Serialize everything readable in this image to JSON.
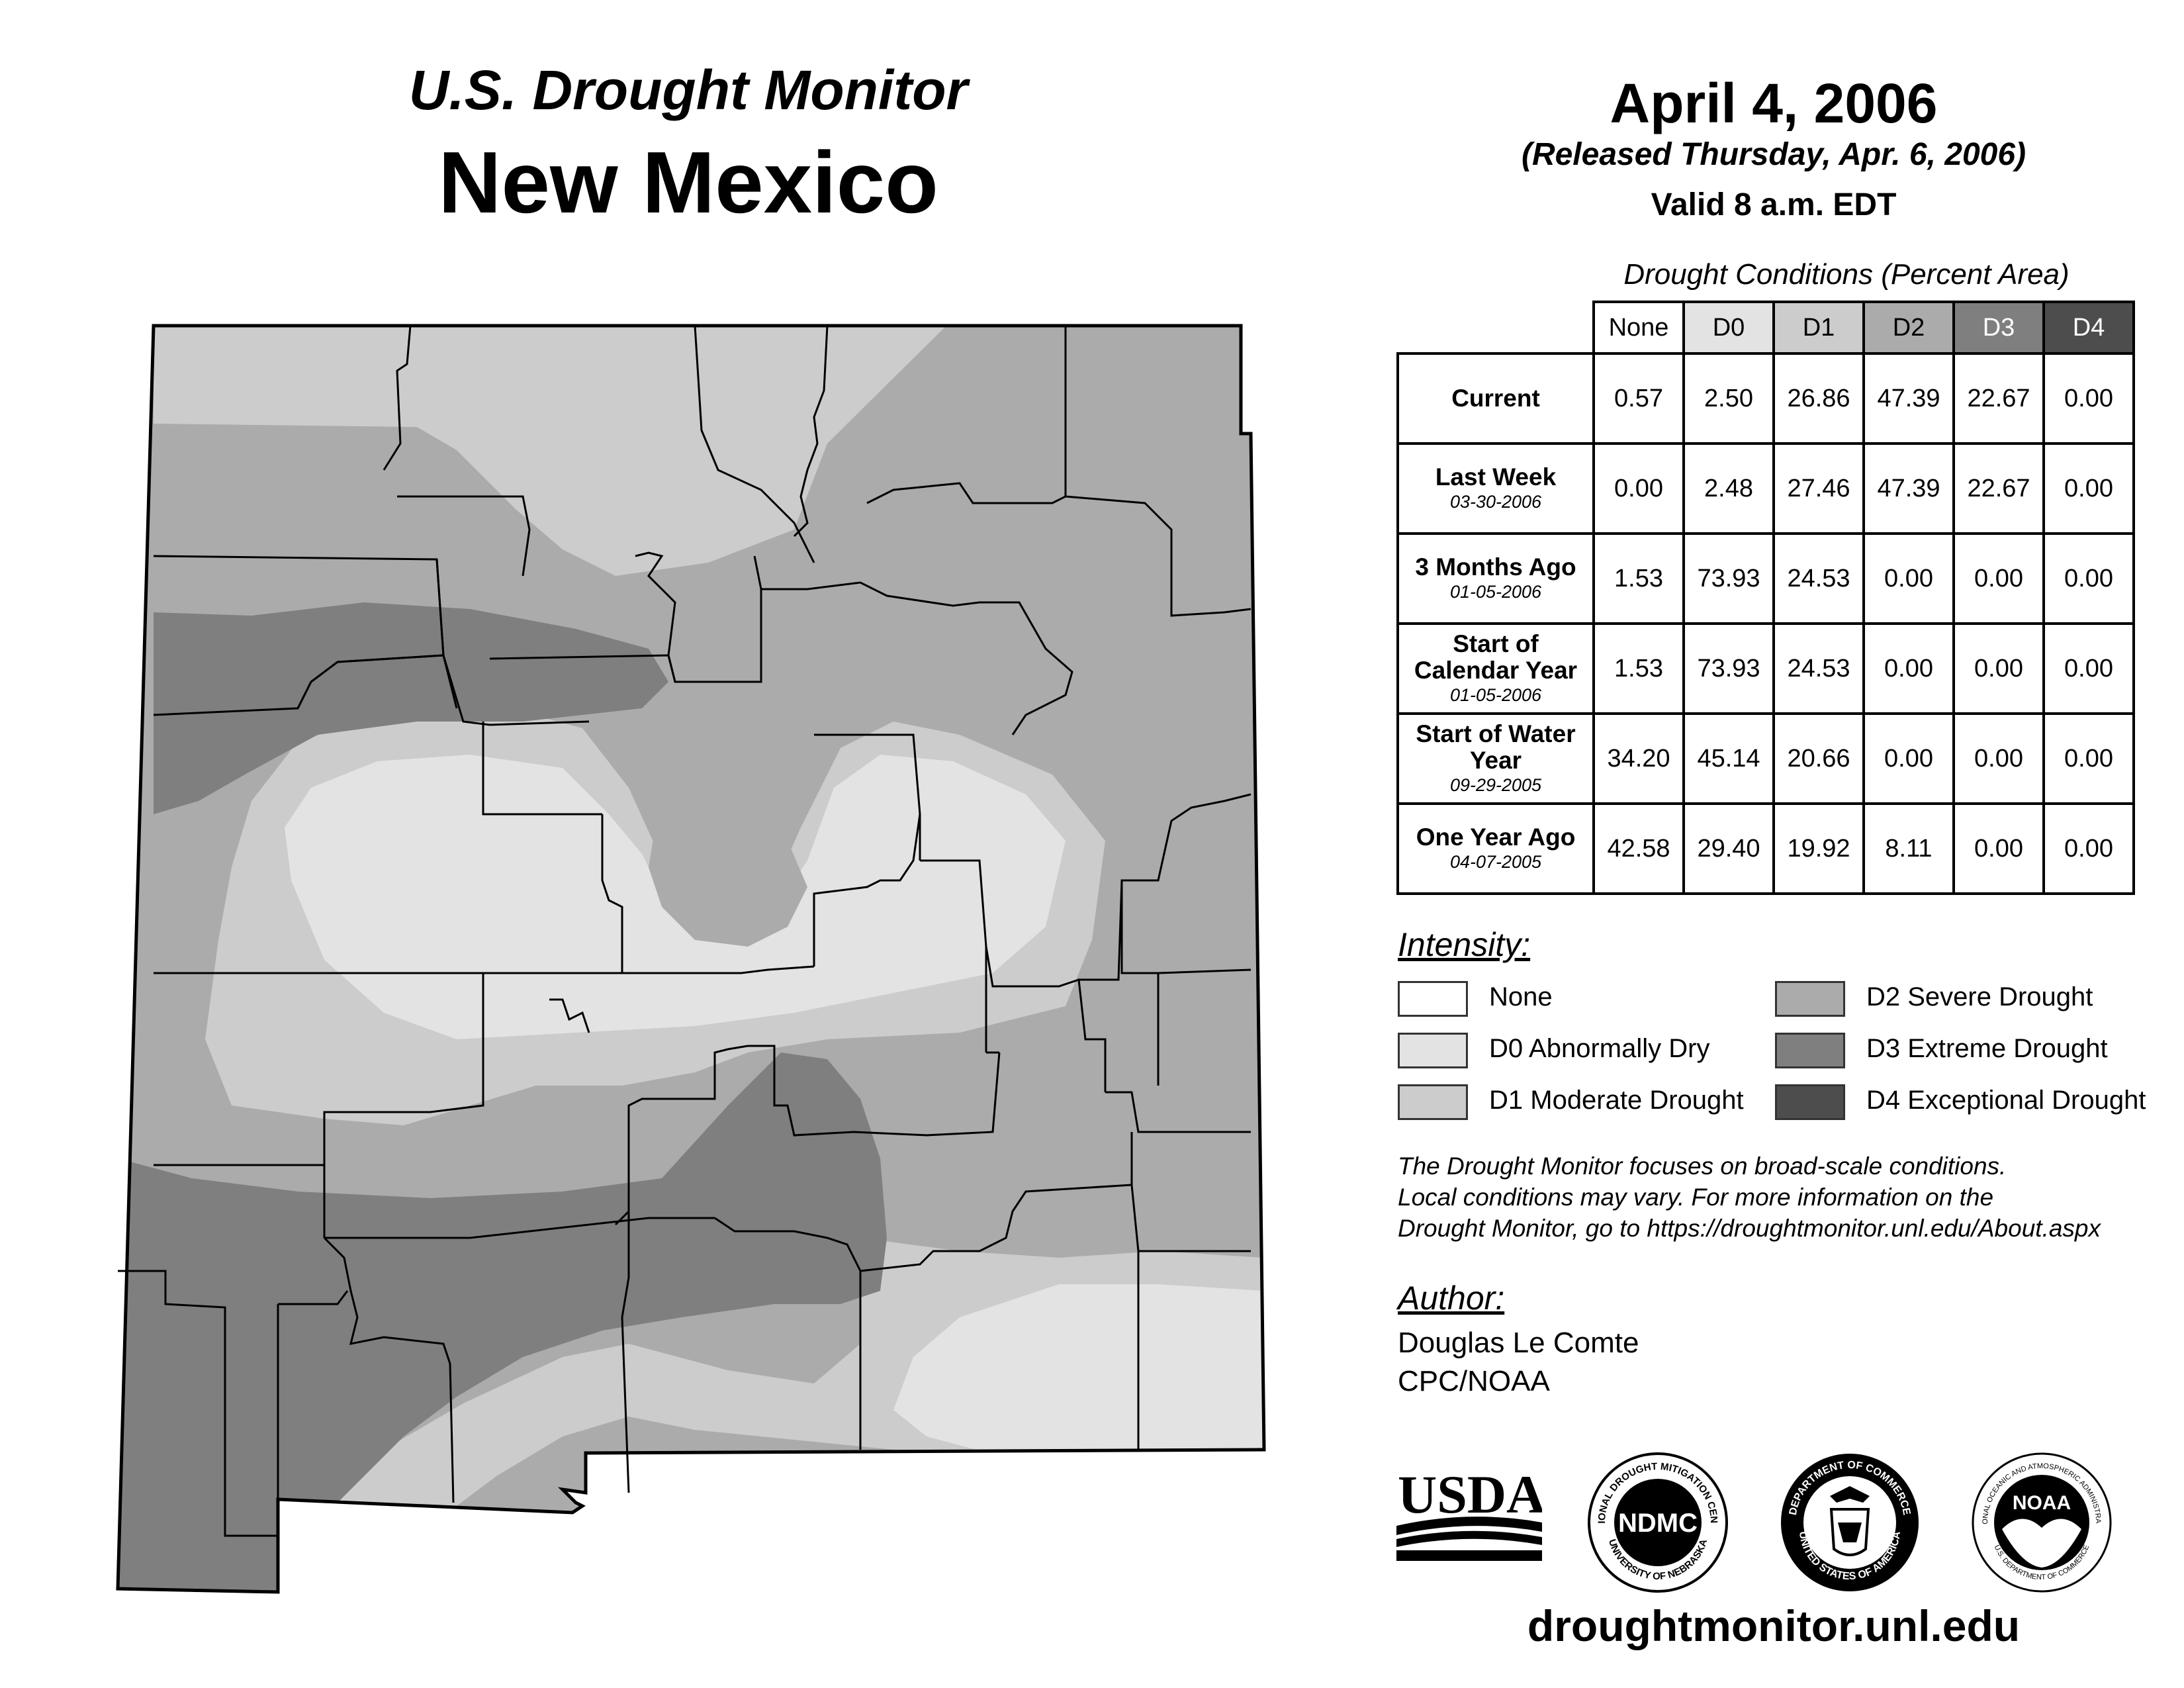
{
  "header": {
    "subtitle": "U.S. Drought Monitor",
    "state": "New Mexico",
    "date": "April 4, 2006",
    "released": "(Released Thursday, Apr. 6, 2006)",
    "valid": "Valid 8 a.m. EDT"
  },
  "table": {
    "caption": "Drought Conditions (Percent Area)",
    "columns": [
      "None",
      "D0",
      "D1",
      "D2",
      "D3",
      "D4"
    ],
    "rows": [
      {
        "label": "Current",
        "date": "",
        "values": [
          "0.57",
          "2.50",
          "26.86",
          "47.39",
          "22.67",
          "0.00"
        ]
      },
      {
        "label": "Last Week",
        "date": "03-30-2006",
        "values": [
          "0.00",
          "2.48",
          "27.46",
          "47.39",
          "22.67",
          "0.00"
        ]
      },
      {
        "label": "3 Months Ago",
        "date": "01-05-2006",
        "values": [
          "1.53",
          "73.93",
          "24.53",
          "0.00",
          "0.00",
          "0.00"
        ]
      },
      {
        "label": "Start of Calendar Year",
        "date": "01-05-2006",
        "values": [
          "1.53",
          "73.93",
          "24.53",
          "0.00",
          "0.00",
          "0.00"
        ]
      },
      {
        "label": "Start of Water Year",
        "date": "09-29-2005",
        "values": [
          "34.20",
          "45.14",
          "20.66",
          "0.00",
          "0.00",
          "0.00"
        ]
      },
      {
        "label": "One Year Ago",
        "date": "04-07-2005",
        "values": [
          "42.58",
          "29.40",
          "19.92",
          "8.11",
          "0.00",
          "0.00"
        ]
      }
    ]
  },
  "legend": {
    "title": "Intensity:",
    "items": [
      {
        "label": "None",
        "color": "#ffffff"
      },
      {
        "label": "D0 Abnormally Dry",
        "color": "#e3e3e3"
      },
      {
        "label": "D1 Moderate Drought",
        "color": "#cccccc"
      },
      {
        "label": "D2 Severe Drought",
        "color": "#ababab"
      },
      {
        "label": "D3 Extreme Drought",
        "color": "#7f7f7f"
      },
      {
        "label": "D4 Exceptional Drought",
        "color": "#4d4d4d"
      }
    ]
  },
  "note": {
    "line1": "The Drought Monitor focuses on broad-scale conditions.",
    "line2": "Local conditions may vary. For more information on the",
    "line3": "Drought Monitor, go to https://droughtmonitor.unl.edu/About.aspx"
  },
  "author": {
    "title": "Author:",
    "name": "Douglas Le Comte",
    "org": "CPC/NOAA"
  },
  "logos": {
    "usda": "USDA",
    "ndmc": "NDMC",
    "ndmc_ring_top": "NATIONAL DROUGHT MITIGATION CENTER",
    "ndmc_ring_bottom": "UNIVERSITY OF NEBRASKA",
    "doc_ring_top": "DEPARTMENT OF COMMERCE",
    "doc_ring_bottom": "UNITED STATES OF AMERICA",
    "noaa": "NOAA",
    "noaa_ring_top": "NATIONAL OCEANIC AND ATMOSPHERIC ADMINISTRATION",
    "noaa_ring_bottom": "U.S. DEPARTMENT OF COMMERCE"
  },
  "footer": {
    "url": "droughtmonitor.unl.edu"
  }
}
